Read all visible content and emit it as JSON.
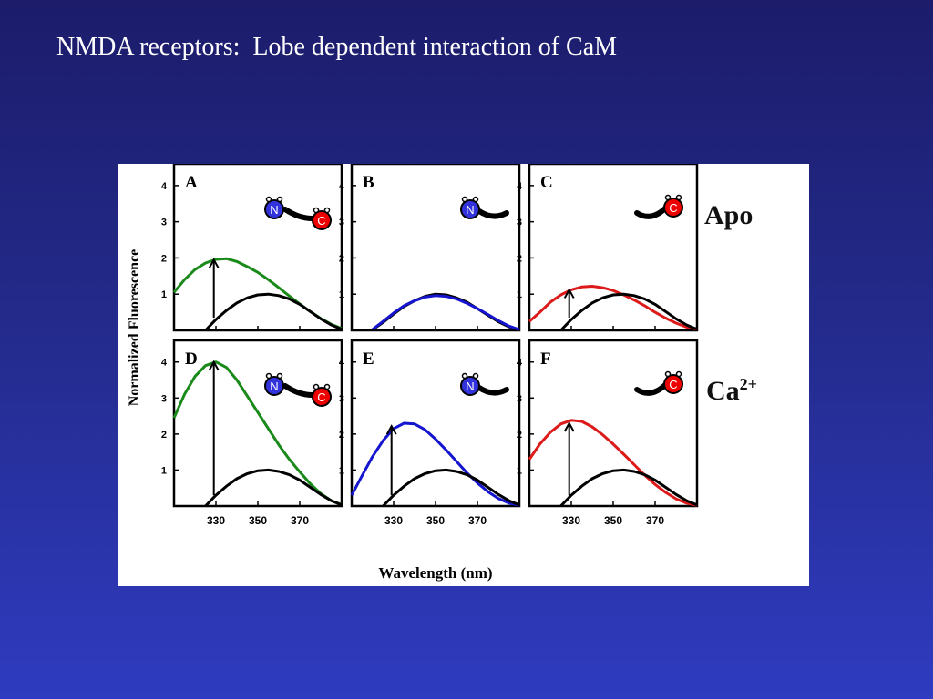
{
  "slide": {
    "title": "NMDA receptors:  Lobe dependent interaction of CaM"
  },
  "figure": {
    "row_labels": {
      "apo": "Apo",
      "ca_base": "Ca",
      "ca_sup": "2+"
    }
  },
  "colors": {
    "green": "#1a8a1a",
    "blue": "#1515d0",
    "red": "#dd1a1a",
    "black": "#000000",
    "n_lobe": "#3333dd",
    "c_lobe": "#ee0000"
  },
  "chart_data": [
    {
      "panel": "A",
      "type": "line",
      "ylabel": "Normalized Fluorescence",
      "xlabel": "Wavelength (nm)",
      "xticks": [
        330,
        350,
        370
      ],
      "yticks": [
        1,
        2,
        3,
        4
      ],
      "xlim": [
        310,
        390
      ],
      "ylim": [
        0,
        4.6
      ],
      "series": [
        {
          "color": "green",
          "x": [
            310,
            315,
            320,
            325,
            330,
            335,
            340,
            345,
            350,
            355,
            360,
            365,
            370,
            375,
            380,
            385,
            390
          ],
          "y": [
            1.05,
            1.4,
            1.68,
            1.86,
            1.96,
            1.98,
            1.9,
            1.76,
            1.6,
            1.4,
            1.18,
            0.95,
            0.73,
            0.52,
            0.33,
            0.17,
            0.05
          ]
        },
        {
          "color": "black",
          "x": [
            325,
            330,
            335,
            340,
            345,
            350,
            355,
            360,
            365,
            370,
            375,
            380,
            385,
            390
          ],
          "y": [
            0.0,
            0.3,
            0.55,
            0.76,
            0.9,
            0.98,
            1.0,
            0.96,
            0.87,
            0.72,
            0.52,
            0.32,
            0.15,
            0.03
          ]
        }
      ],
      "arrow": {
        "x": 329,
        "y_from": 0.35,
        "y_to": 1.95
      },
      "icon": "N-C"
    },
    {
      "panel": "B",
      "type": "line",
      "ylabel": "Normalized Fluorescence",
      "xlabel": "Wavelength (nm)",
      "xticks": [
        330,
        350,
        370
      ],
      "yticks": [
        1,
        2,
        3,
        4
      ],
      "xlim": [
        310,
        390
      ],
      "ylim": [
        0,
        4.6
      ],
      "series": [
        {
          "color": "black",
          "x": [
            320,
            325,
            330,
            335,
            340,
            345,
            350,
            355,
            360,
            365,
            370,
            375,
            380,
            385,
            390
          ],
          "y": [
            0.02,
            0.22,
            0.45,
            0.66,
            0.82,
            0.94,
            1.0,
            0.98,
            0.9,
            0.78,
            0.6,
            0.42,
            0.24,
            0.1,
            0.02
          ]
        },
        {
          "color": "blue",
          "x": [
            320,
            325,
            330,
            335,
            340,
            345,
            350,
            355,
            360,
            365,
            370,
            375,
            380,
            385,
            390
          ],
          "y": [
            0.03,
            0.25,
            0.48,
            0.68,
            0.82,
            0.92,
            0.96,
            0.94,
            0.87,
            0.75,
            0.6,
            0.44,
            0.27,
            0.12,
            0.02
          ]
        }
      ],
      "icon": "N"
    },
    {
      "panel": "C",
      "type": "line",
      "ylabel": "Normalized Fluorescence",
      "xlabel": "Wavelength (nm)",
      "xticks": [
        330,
        350,
        370
      ],
      "yticks": [
        1,
        2,
        3,
        4
      ],
      "xlim": [
        310,
        390
      ],
      "ylim": [
        0,
        4.6
      ],
      "series": [
        {
          "color": "red",
          "x": [
            310,
            315,
            320,
            325,
            330,
            335,
            340,
            345,
            350,
            355,
            360,
            365,
            370,
            375,
            380,
            385,
            390
          ],
          "y": [
            0.25,
            0.5,
            0.78,
            0.98,
            1.12,
            1.2,
            1.22,
            1.18,
            1.1,
            0.98,
            0.84,
            0.68,
            0.5,
            0.34,
            0.2,
            0.09,
            0.03
          ]
        },
        {
          "color": "black",
          "x": [
            325,
            330,
            335,
            340,
            345,
            350,
            355,
            360,
            365,
            370,
            375,
            380,
            385,
            390
          ],
          "y": [
            0.0,
            0.3,
            0.55,
            0.76,
            0.9,
            0.98,
            1.0,
            0.96,
            0.87,
            0.72,
            0.52,
            0.32,
            0.15,
            0.03
          ]
        }
      ],
      "arrow": {
        "x": 329,
        "y_from": 0.35,
        "y_to": 1.12
      },
      "icon": "C"
    },
    {
      "panel": "D",
      "type": "line",
      "ylabel": "Normalized Fluorescence",
      "xlabel": "Wavelength (nm)",
      "xticks": [
        330,
        350,
        370
      ],
      "yticks": [
        1,
        2,
        3,
        4
      ],
      "xlim": [
        310,
        390
      ],
      "ylim": [
        0,
        4.6
      ],
      "series": [
        {
          "color": "green",
          "x": [
            310,
            315,
            320,
            325,
            330,
            335,
            340,
            345,
            350,
            355,
            360,
            365,
            370,
            375,
            380,
            385,
            390
          ],
          "y": [
            2.45,
            3.1,
            3.6,
            3.9,
            4.0,
            3.85,
            3.5,
            3.05,
            2.6,
            2.15,
            1.7,
            1.3,
            0.95,
            0.62,
            0.35,
            0.15,
            0.04
          ]
        },
        {
          "color": "black",
          "x": [
            325,
            330,
            335,
            340,
            345,
            350,
            355,
            360,
            365,
            370,
            375,
            380,
            385,
            390
          ],
          "y": [
            0.0,
            0.3,
            0.55,
            0.76,
            0.9,
            0.98,
            1.0,
            0.96,
            0.87,
            0.72,
            0.52,
            0.32,
            0.15,
            0.03
          ]
        }
      ],
      "arrow": {
        "x": 329,
        "y_from": 0.3,
        "y_to": 4.0
      },
      "icon": "N-C"
    },
    {
      "panel": "E",
      "type": "line",
      "ylabel": "Normalized Fluorescence",
      "xlabel": "Wavelength (nm)",
      "xticks": [
        330,
        350,
        370
      ],
      "yticks": [
        1,
        2,
        3,
        4
      ],
      "xlim": [
        310,
        390
      ],
      "ylim": [
        0,
        4.6
      ],
      "series": [
        {
          "color": "blue",
          "x": [
            310,
            315,
            320,
            325,
            330,
            335,
            340,
            345,
            350,
            355,
            360,
            365,
            370,
            375,
            380,
            385,
            390
          ],
          "y": [
            0.3,
            0.85,
            1.38,
            1.82,
            2.15,
            2.3,
            2.28,
            2.12,
            1.86,
            1.56,
            1.24,
            0.92,
            0.64,
            0.4,
            0.21,
            0.08,
            0.02
          ]
        },
        {
          "color": "black",
          "x": [
            325,
            330,
            335,
            340,
            345,
            350,
            355,
            360,
            365,
            370,
            375,
            380,
            385,
            390
          ],
          "y": [
            0.0,
            0.3,
            0.55,
            0.76,
            0.9,
            0.98,
            1.0,
            0.96,
            0.87,
            0.72,
            0.52,
            0.32,
            0.15,
            0.03
          ]
        }
      ],
      "arrow": {
        "x": 329,
        "y_from": 0.3,
        "y_to": 2.22
      },
      "icon": "N"
    },
    {
      "panel": "F",
      "type": "line",
      "ylabel": "Normalized Fluorescence",
      "xlabel": "Wavelength (nm)",
      "xticks": [
        330,
        350,
        370
      ],
      "yticks": [
        1,
        2,
        3,
        4
      ],
      "xlim": [
        310,
        390
      ],
      "ylim": [
        0,
        4.6
      ],
      "series": [
        {
          "color": "red",
          "x": [
            310,
            315,
            320,
            325,
            330,
            335,
            340,
            345,
            350,
            355,
            360,
            365,
            370,
            375,
            380,
            385,
            390
          ],
          "y": [
            1.3,
            1.72,
            2.05,
            2.28,
            2.38,
            2.35,
            2.2,
            1.98,
            1.72,
            1.44,
            1.15,
            0.86,
            0.6,
            0.38,
            0.2,
            0.08,
            0.02
          ]
        },
        {
          "color": "black",
          "x": [
            325,
            330,
            335,
            340,
            345,
            350,
            355,
            360,
            365,
            370,
            375,
            380,
            385,
            390
          ],
          "y": [
            0.0,
            0.3,
            0.55,
            0.76,
            0.9,
            0.98,
            1.0,
            0.96,
            0.87,
            0.72,
            0.52,
            0.32,
            0.15,
            0.03
          ]
        }
      ],
      "arrow": {
        "x": 329,
        "y_from": 0.3,
        "y_to": 2.3
      },
      "icon": "C"
    }
  ]
}
